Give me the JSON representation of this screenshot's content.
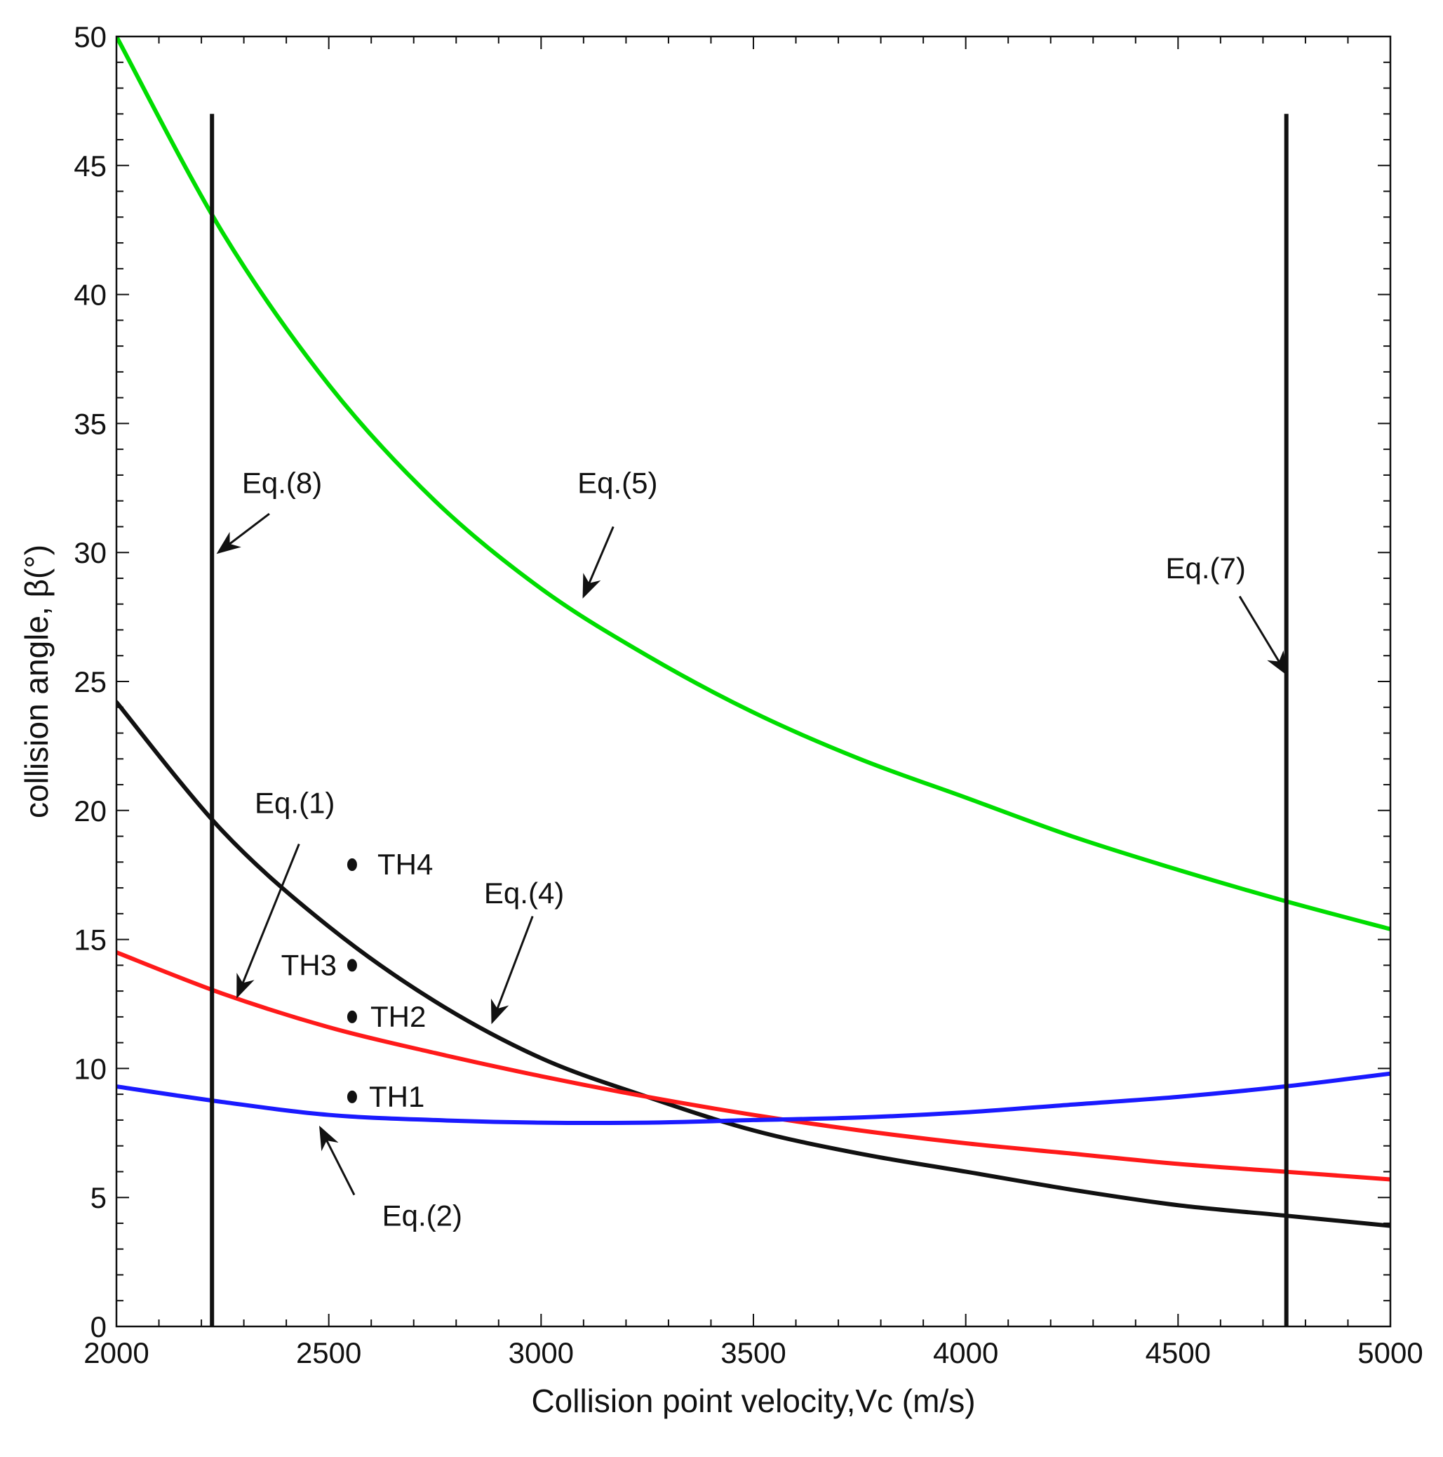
{
  "chart_data": {
    "type": "line",
    "title": "",
    "xlabel": "Collision point velocity,Vc (m/s)",
    "ylabel": "collision angle, β(°)",
    "xlim": [
      2000,
      5000
    ],
    "ylim": [
      0,
      50
    ],
    "xticks": [
      2000,
      2500,
      3000,
      3500,
      4000,
      4500,
      5000
    ],
    "yticks": [
      0,
      5,
      10,
      15,
      20,
      25,
      30,
      35,
      40,
      45,
      50
    ],
    "grid": false,
    "series": [
      {
        "name": "Eq.(5)",
        "color": "#00dd00",
        "x": [
          2000,
          2250,
          2500,
          2750,
          3000,
          3250,
          3500,
          3750,
          4000,
          4250,
          4500,
          4750,
          5000
        ],
        "y": [
          50.0,
          42.4,
          36.5,
          32.0,
          28.6,
          26.0,
          23.8,
          22.0,
          20.5,
          19.0,
          17.7,
          16.5,
          15.4
        ]
      },
      {
        "name": "Eq.(4)",
        "color": "#111111",
        "x": [
          2000,
          2250,
          2500,
          2750,
          3000,
          3250,
          3500,
          3750,
          4000,
          4250,
          4500,
          4750,
          5000
        ],
        "y": [
          24.2,
          19.2,
          15.5,
          12.6,
          10.4,
          8.9,
          7.6,
          6.7,
          6.0,
          5.3,
          4.7,
          4.3,
          3.9
        ]
      },
      {
        "name": "Eq.(1)",
        "color": "#ff1a1a",
        "x": [
          2000,
          2250,
          2500,
          2750,
          3000,
          3250,
          3500,
          3750,
          4000,
          4250,
          4500,
          4750,
          5000
        ],
        "y": [
          14.5,
          12.9,
          11.6,
          10.6,
          9.7,
          8.9,
          8.2,
          7.6,
          7.1,
          6.7,
          6.3,
          6.0,
          5.7
        ]
      },
      {
        "name": "Eq.(2)",
        "color": "#1a1aff",
        "x": [
          2000,
          2250,
          2500,
          2750,
          3000,
          3250,
          3500,
          3750,
          4000,
          4250,
          4500,
          4750,
          5000
        ],
        "y": [
          9.3,
          8.7,
          8.2,
          8.0,
          7.9,
          7.9,
          8.0,
          8.1,
          8.3,
          8.6,
          8.9,
          9.3,
          9.8
        ]
      }
    ],
    "vertical_lines": [
      {
        "name": "Eq.(8)",
        "x": 2225,
        "y_from": 0,
        "y_to": 47
      },
      {
        "name": "Eq.(7)",
        "x": 4755,
        "y_from": 0,
        "y_to": 47
      }
    ],
    "points": [
      {
        "label": "TH1",
        "x": 2555,
        "y": 8.9
      },
      {
        "label": "TH2",
        "x": 2555,
        "y": 12.0
      },
      {
        "label": "TH3",
        "x": 2555,
        "y": 14.0
      },
      {
        "label": "TH4",
        "x": 2555,
        "y": 17.9
      }
    ],
    "annotations": [
      {
        "text": "Eq.(8)",
        "text_x": 2390,
        "text_y": 32.3,
        "arrow_from": [
          2360,
          31.5
        ],
        "arrow_to": [
          2240,
          30.0
        ]
      },
      {
        "text": "Eq.(5)",
        "text_x": 3180,
        "text_y": 32.3,
        "arrow_from": [
          3170,
          31.0
        ],
        "arrow_to": [
          3100,
          28.3
        ]
      },
      {
        "text": "Eq.(7)",
        "text_x": 4565,
        "text_y": 29.0,
        "arrow_from": [
          4645,
          28.3
        ],
        "arrow_to": [
          4755,
          25.3
        ]
      },
      {
        "text": "Eq.(1)",
        "text_x": 2420,
        "text_y": 19.9,
        "arrow_from": [
          2430,
          18.7
        ],
        "arrow_to": [
          2285,
          12.8
        ]
      },
      {
        "text": "Eq.(4)",
        "text_x": 2960,
        "text_y": 16.4,
        "arrow_from": [
          2980,
          15.9
        ],
        "arrow_to": [
          2885,
          11.8
        ]
      },
      {
        "text": "Eq.(2)",
        "text_x": 2720,
        "text_y": 3.9,
        "arrow_from": [
          2560,
          5.1
        ],
        "arrow_to": [
          2480,
          7.7
        ]
      }
    ]
  }
}
